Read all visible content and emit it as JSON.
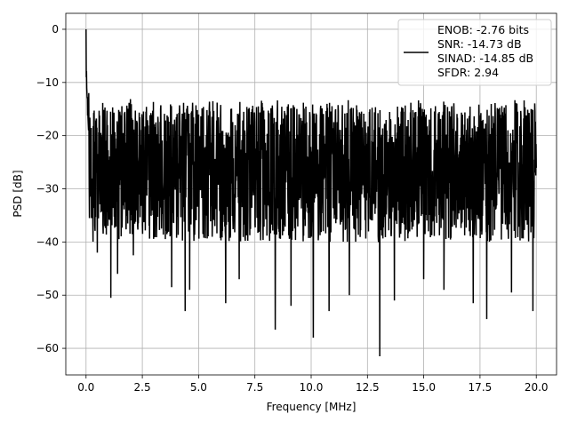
{
  "chart_data": {
    "type": "line",
    "title": "",
    "xlabel": "Frequency [MHz]",
    "ylabel": "PSD [dB]",
    "xlim": [
      -0.9,
      20.9
    ],
    "ylim": [
      -65,
      3
    ],
    "x_ticks": [
      0.0,
      2.5,
      5.0,
      7.5,
      10.0,
      12.5,
      15.0,
      17.5,
      20.0
    ],
    "x_tick_labels": [
      "0.0",
      "2.5",
      "5.0",
      "7.5",
      "10.0",
      "12.5",
      "15.0",
      "17.5",
      "20.0"
    ],
    "y_ticks": [
      0,
      -10,
      -20,
      -30,
      -40,
      -50,
      -60
    ],
    "y_tick_labels": [
      "0",
      "−10",
      "−20",
      "−30",
      "−40",
      "−50",
      "−60"
    ],
    "grid": true,
    "legend_position": "top-right",
    "legend_lines": [
      "ENOB: -2.76 bits",
      "SNR: -14.73 dB",
      "SINAD: -14.85 dB",
      "SFDR: 2.94"
    ],
    "series_color": "#000000",
    "grid_color": "#b0b0b0",
    "series": [
      {
        "x_start": 0.0,
        "x_end": 20.0,
        "num_points": 2000,
        "noise_upper_bound_approx": -15,
        "noise_center_approx": -25,
        "noise_lower_bound_approx": -40,
        "notable_peaks": [
          {
            "x": 0.0,
            "y": 0.0
          },
          {
            "x": 0.02,
            "y": -6
          },
          {
            "x": 0.06,
            "y": -9
          },
          {
            "x": 0.12,
            "y": -12
          }
        ],
        "notable_minima": [
          {
            "x": 0.5,
            "y": -42
          },
          {
            "x": 1.1,
            "y": -50.5
          },
          {
            "x": 1.4,
            "y": -46
          },
          {
            "x": 2.1,
            "y": -42.5
          },
          {
            "x": 3.8,
            "y": -48.5
          },
          {
            "x": 4.4,
            "y": -53
          },
          {
            "x": 4.6,
            "y": -49
          },
          {
            "x": 6.2,
            "y": -51.5
          },
          {
            "x": 6.8,
            "y": -47
          },
          {
            "x": 8.4,
            "y": -56.5
          },
          {
            "x": 9.1,
            "y": -52
          },
          {
            "x": 10.1,
            "y": -58
          },
          {
            "x": 10.8,
            "y": -53
          },
          {
            "x": 11.7,
            "y": -50
          },
          {
            "x": 13.05,
            "y": -61.5
          },
          {
            "x": 13.7,
            "y": -51
          },
          {
            "x": 15.0,
            "y": -47
          },
          {
            "x": 15.9,
            "y": -49
          },
          {
            "x": 17.2,
            "y": -51.5
          },
          {
            "x": 17.8,
            "y": -54.5
          },
          {
            "x": 18.9,
            "y": -49.5
          },
          {
            "x": 19.85,
            "y": -53
          }
        ]
      }
    ]
  }
}
